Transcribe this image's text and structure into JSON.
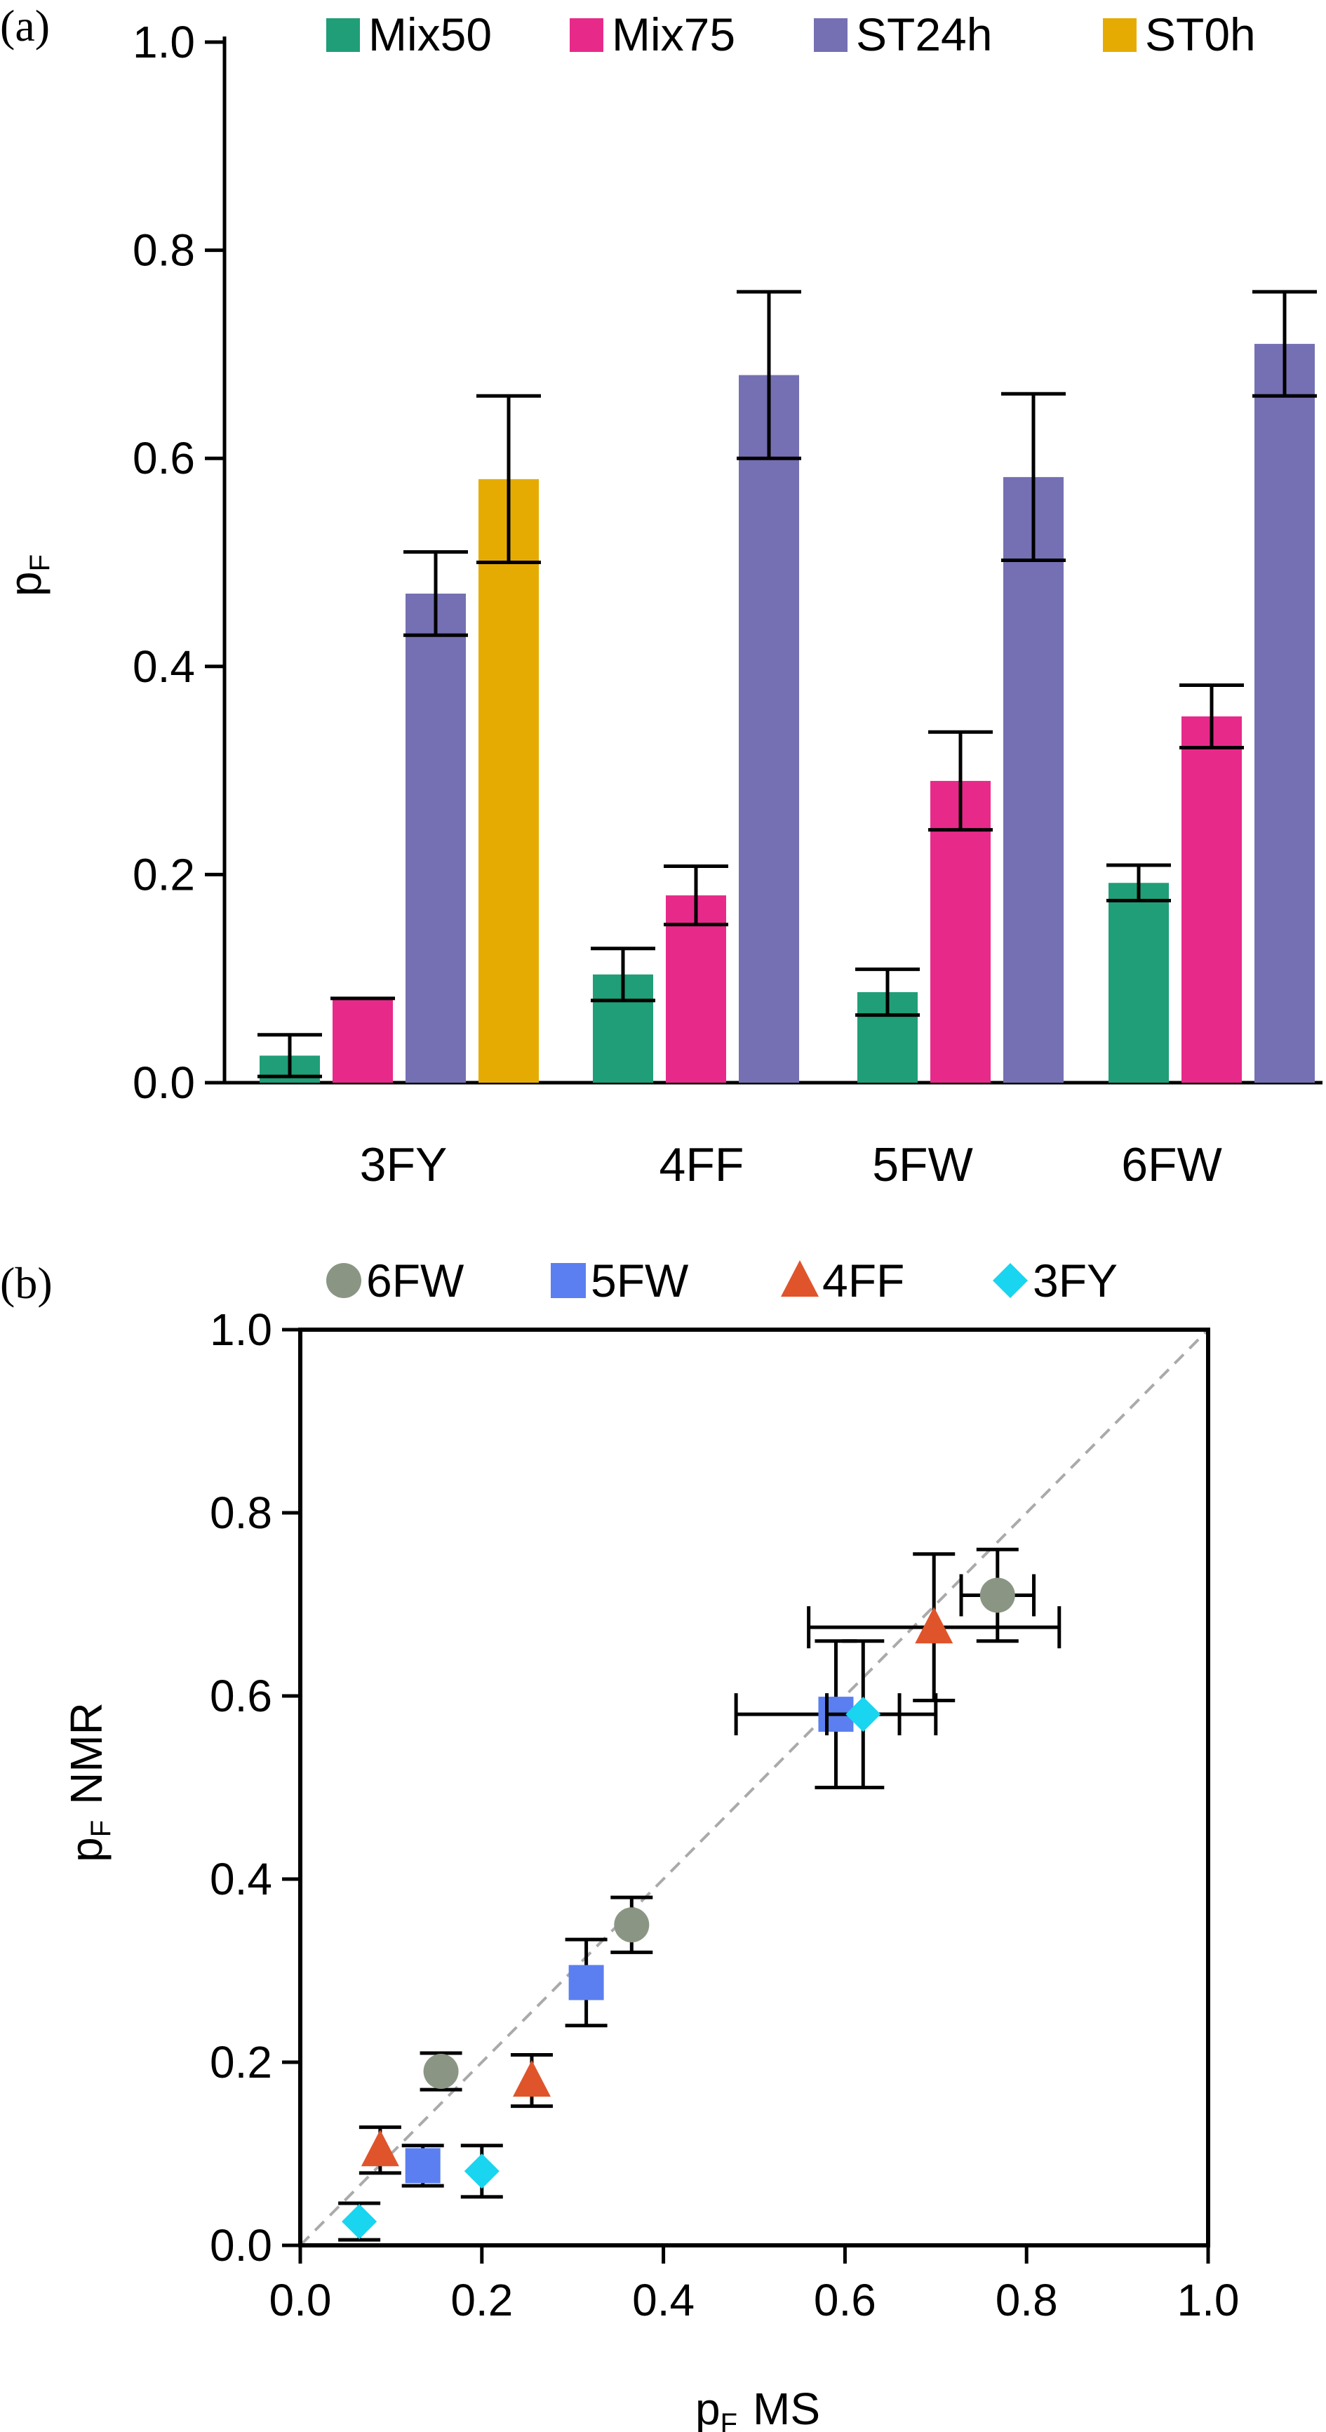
{
  "chart_data": [
    {
      "panel": "(a)",
      "type": "bar",
      "categories": [
        "3FY",
        "4FF",
        "5FW",
        "6FW"
      ],
      "ylabel": "p",
      "ylabel_sub": "F",
      "ylim": [
        0.0,
        1.0
      ],
      "yticks": [
        "0.0",
        "0.2",
        "0.4",
        "0.6",
        "0.8",
        "1.0"
      ],
      "legend_position": "top",
      "grid": false,
      "series": [
        {
          "name": "Mix50",
          "color": "#1f9e77",
          "values": [
            0.026,
            0.104,
            0.087,
            0.192
          ],
          "errors": [
            0.02,
            0.025,
            0.022,
            0.017
          ]
        },
        {
          "name": "Mix75",
          "color": "#e72a8a",
          "values": [
            0.081,
            0.18,
            0.29,
            0.352
          ],
          "errors": [
            0.0,
            0.028,
            0.047,
            0.03
          ]
        },
        {
          "name": "ST24h",
          "color": "#7570b3",
          "values": [
            0.47,
            0.68,
            0.582,
            0.71
          ],
          "errors": [
            0.04,
            0.08,
            0.08,
            0.05
          ]
        },
        {
          "name": "ST0h",
          "color": "#e6ab02",
          "values": [
            0.58,
            null,
            null,
            null
          ],
          "errors": [
            0.08,
            null,
            null,
            null
          ]
        }
      ]
    },
    {
      "panel": "(b)",
      "type": "scatter",
      "xlabel": "p",
      "xlabel_sub": "F",
      "xlabel_suffix": "MS",
      "ylabel": "p",
      "ylabel_sub": "F",
      "ylabel_suffix": "NMR",
      "xlim": [
        0.0,
        1.0
      ],
      "ylim": [
        0.0,
        1.0
      ],
      "xticks": [
        "0.0",
        "0.2",
        "0.4",
        "0.6",
        "0.8",
        "1.0"
      ],
      "yticks": [
        "0.0",
        "0.2",
        "0.4",
        "0.6",
        "0.8",
        "1.0"
      ],
      "diagonal": "dashed y = x",
      "legend_position": "top",
      "grid": false,
      "series": [
        {
          "name": "6FW",
          "marker": "circle",
          "color": "#8a9683",
          "points": [
            {
              "x": 0.155,
              "y": 0.19,
              "yerr": 0.02,
              "xerr": 0
            },
            {
              "x": 0.365,
              "y": 0.35,
              "yerr": 0.03,
              "xerr": 0
            },
            {
              "x": 0.768,
              "y": 0.71,
              "yerr": 0.05,
              "xerr": 0.04
            }
          ]
        },
        {
          "name": "5FW",
          "marker": "square",
          "color": "#5b7ff0",
          "points": [
            {
              "x": 0.135,
              "y": 0.087,
              "yerr": 0.022,
              "xerr": 0
            },
            {
              "x": 0.315,
              "y": 0.287,
              "yerr": 0.047,
              "xerr": 0
            },
            {
              "x": 0.59,
              "y": 0.58,
              "yerr": 0.08,
              "xerr": 0.11
            }
          ]
        },
        {
          "name": "4FF",
          "marker": "triangle",
          "color": "#e0542b",
          "points": [
            {
              "x": 0.088,
              "y": 0.104,
              "yerr": 0.025,
              "xerr": 0
            },
            {
              "x": 0.255,
              "y": 0.18,
              "yerr": 0.028,
              "xerr": 0
            },
            {
              "x": 0.698,
              "y": 0.675,
              "yerr": 0.08,
              "xerr": 0.138
            }
          ]
        },
        {
          "name": "3FY",
          "marker": "diamond",
          "color": "#19d5ef",
          "points": [
            {
              "x": 0.065,
              "y": 0.026,
              "yerr": 0.02,
              "xerr": 0
            },
            {
              "x": 0.2,
              "y": 0.081,
              "yerr": 0.028,
              "xerr": 0
            },
            {
              "x": 0.62,
              "y": 0.58,
              "yerr": 0.08,
              "xerr": 0.04
            }
          ]
        }
      ]
    }
  ]
}
